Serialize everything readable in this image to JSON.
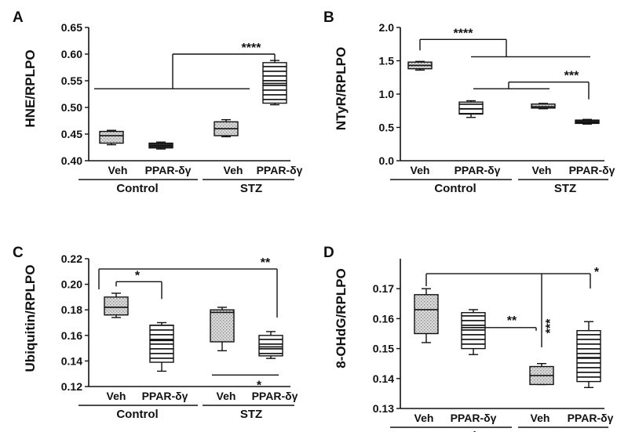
{
  "chart_data": [
    {
      "panel_letter": "A",
      "type": "box",
      "ylabel": "HNE/RPLPO",
      "ylim": [
        0.4,
        0.65
      ],
      "yticks": [
        "0.40",
        "0.45",
        "0.50",
        "0.55",
        "0.60",
        "0.65"
      ],
      "categories": [
        "Veh",
        "PPAR-δγ",
        "Veh",
        "PPAR-δγ"
      ],
      "groups": [
        "Control",
        "STZ"
      ],
      "boxes": [
        {
          "min": 0.43,
          "q1": 0.433,
          "median": 0.447,
          "q3": 0.455,
          "max": 0.457,
          "fill": "#d2d2d2",
          "pattern": "dots"
        },
        {
          "min": 0.422,
          "q1": 0.424,
          "median": 0.428,
          "q3": 0.433,
          "max": 0.435,
          "fill": "#2a2a2a",
          "pattern": "solid"
        },
        {
          "min": 0.445,
          "q1": 0.447,
          "median": 0.46,
          "q3": 0.473,
          "max": 0.477,
          "fill": "#d2d2d2",
          "pattern": "dots"
        },
        {
          "min": 0.505,
          "q1": 0.508,
          "median": 0.545,
          "q3": 0.584,
          "max": 0.588,
          "fill": "#ffffff",
          "pattern": "hlines"
        }
      ],
      "annotations": [
        {
          "label": "****",
          "from": [
            0,
            1
          ],
          "to": [
            2,
            3
          ],
          "y": 0.535,
          "bar_y": 0.6
        }
      ]
    },
    {
      "panel_letter": "B",
      "type": "box",
      "ylabel": "NTyR/RPLPO",
      "ylim": [
        0.0,
        2.0
      ],
      "yticks": [
        "0.0",
        "0.5",
        "1.0",
        "1.5",
        "2.0"
      ],
      "categories": [
        "Veh",
        "PPAR-δγ",
        "Veh",
        "PPAR-δγ"
      ],
      "groups": [
        "Control",
        "STZ"
      ],
      "boxes": [
        {
          "min": 1.36,
          "q1": 1.38,
          "median": 1.43,
          "q3": 1.48,
          "max": 1.49,
          "fill": "#d2d2d2",
          "pattern": "dots"
        },
        {
          "min": 0.65,
          "q1": 0.7,
          "median": 0.78,
          "q3": 0.88,
          "max": 0.9,
          "fill": "#ffffff",
          "pattern": "hlines"
        },
        {
          "min": 0.78,
          "q1": 0.79,
          "median": 0.81,
          "q3": 0.85,
          "max": 0.86,
          "fill": "#d2d2d2",
          "pattern": "dots"
        },
        {
          "min": 0.55,
          "q1": 0.56,
          "median": 0.58,
          "q3": 0.61,
          "max": 0.62,
          "fill": "#2a2a2a",
          "pattern": "solid"
        }
      ],
      "annotations": [
        {
          "label": "****",
          "from": [
            0
          ],
          "to": [
            1,
            2,
            3
          ],
          "y": 1.56,
          "bar_y": 1.82
        },
        {
          "label": "***",
          "from": [
            1,
            2
          ],
          "to": [
            3
          ],
          "y": 1.08,
          "bar_y": 1.18
        }
      ]
    },
    {
      "panel_letter": "C",
      "type": "box",
      "ylabel": "Ubiquitin/RPLPO",
      "ylim": [
        0.12,
        0.22
      ],
      "yticks": [
        "0.12",
        "0.14",
        "0.16",
        "0.18",
        "0.20",
        "0.22"
      ],
      "categories": [
        "Veh",
        "PPAR-δγ",
        "Veh",
        "PPAR-δγ"
      ],
      "groups": [
        "Control",
        "STZ"
      ],
      "boxes": [
        {
          "min": 0.174,
          "q1": 0.176,
          "median": 0.182,
          "q3": 0.19,
          "max": 0.193,
          "fill": "#d2d2d2",
          "pattern": "dots"
        },
        {
          "min": 0.132,
          "q1": 0.139,
          "median": 0.156,
          "q3": 0.168,
          "max": 0.17,
          "fill": "#ffffff",
          "pattern": "hlines"
        },
        {
          "min": 0.148,
          "q1": 0.155,
          "median": 0.178,
          "q3": 0.18,
          "max": 0.182,
          "fill": "#d2d2d2",
          "pattern": "dots"
        },
        {
          "min": 0.142,
          "q1": 0.144,
          "median": 0.151,
          "q3": 0.16,
          "max": 0.163,
          "fill": "#ffffff",
          "pattern": "hlines"
        }
      ],
      "annotations": [
        {
          "label": "*",
          "from": [
            0
          ],
          "to": [
            1
          ],
          "y": 0.202,
          "bar_y": 0.202
        },
        {
          "label": "**",
          "from": [
            0
          ],
          "to": [
            3
          ],
          "y": 0.212,
          "bar_y": 0.212
        },
        {
          "label": "*",
          "from": [
            2
          ],
          "to": [
            3
          ],
          "y": 0.129,
          "bar_y": 0.129
        }
      ]
    },
    {
      "panel_letter": "D",
      "type": "box",
      "ylabel": "8-OHdG/RPLPO",
      "ylim": [
        0.13,
        0.18
      ],
      "yticks": [
        "0.13",
        "0.14",
        "0.15",
        "0.16",
        "0.17"
      ],
      "categories": [
        "Veh",
        "PPAR-δγ",
        "Veh",
        "PPAR-δγ"
      ],
      "groups": [
        "Control",
        "STZ"
      ],
      "boxes": [
        {
          "min": 0.152,
          "q1": 0.155,
          "median": 0.163,
          "q3": 0.168,
          "max": 0.17,
          "fill": "#d2d2d2",
          "pattern": "dots"
        },
        {
          "min": 0.148,
          "q1": 0.15,
          "median": 0.157,
          "q3": 0.162,
          "max": 0.163,
          "fill": "#ffffff",
          "pattern": "hlines"
        },
        {
          "min": 0.138,
          "q1": 0.138,
          "median": 0.141,
          "q3": 0.144,
          "max": 0.145,
          "fill": "#d2d2d2",
          "pattern": "dots"
        },
        {
          "min": 0.137,
          "q1": 0.139,
          "median": 0.147,
          "q3": 0.156,
          "max": 0.159,
          "fill": "#ffffff",
          "pattern": "hlines"
        }
      ],
      "annotations": [
        {
          "label": "***",
          "from": [
            0
          ],
          "to": [
            2
          ],
          "y": 0.175,
          "bar_y": 0.175
        },
        {
          "label": "*",
          "from": [
            0
          ],
          "to": [
            3
          ],
          "y": 0.175,
          "bar_y": 0.175
        },
        {
          "label": "**",
          "from": [
            1
          ],
          "to": [
            2
          ],
          "y": 0.157,
          "bar_y": 0.157
        }
      ]
    }
  ]
}
